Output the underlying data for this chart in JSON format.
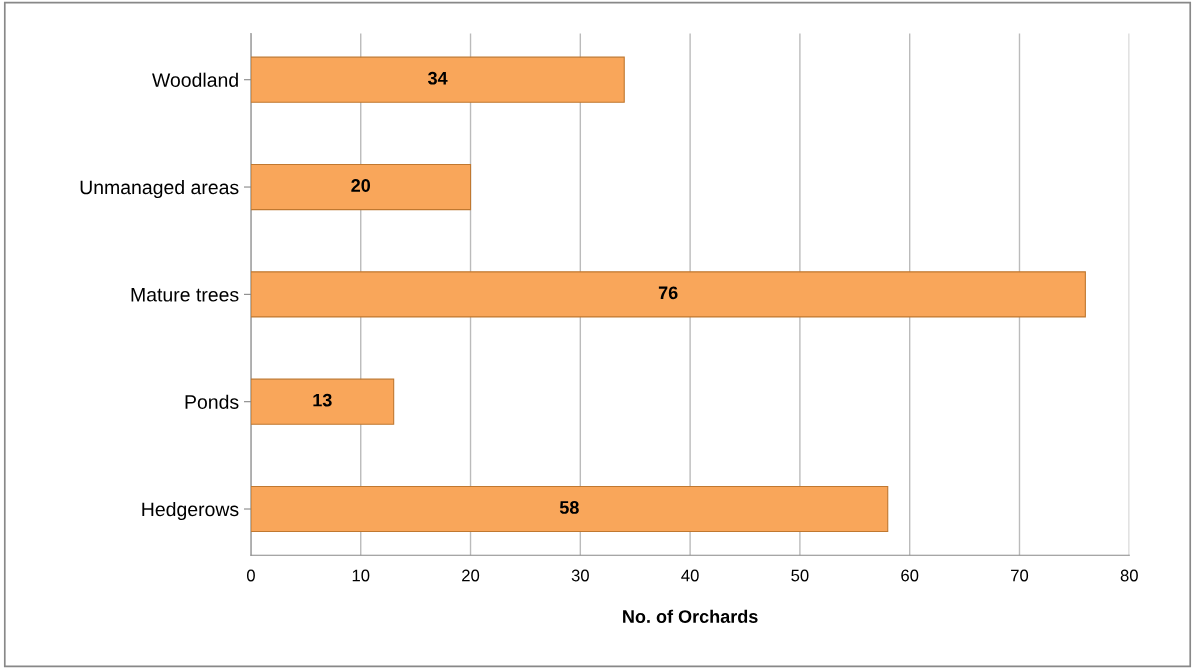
{
  "chart_data": {
    "type": "bar",
    "orientation": "horizontal",
    "xlabel": "No. of Orchards",
    "categories": [
      "Woodland",
      "Unmanaged areas",
      "Mature trees",
      "Ponds",
      "Hedgerows"
    ],
    "values": [
      34,
      20,
      76,
      13,
      58
    ],
    "color": "#f9a65a",
    "xlim": [
      0,
      80
    ],
    "xticks": [
      0,
      10,
      20,
      30,
      40,
      50,
      60,
      70,
      80
    ],
    "grid": "x",
    "data_labels": true
  }
}
